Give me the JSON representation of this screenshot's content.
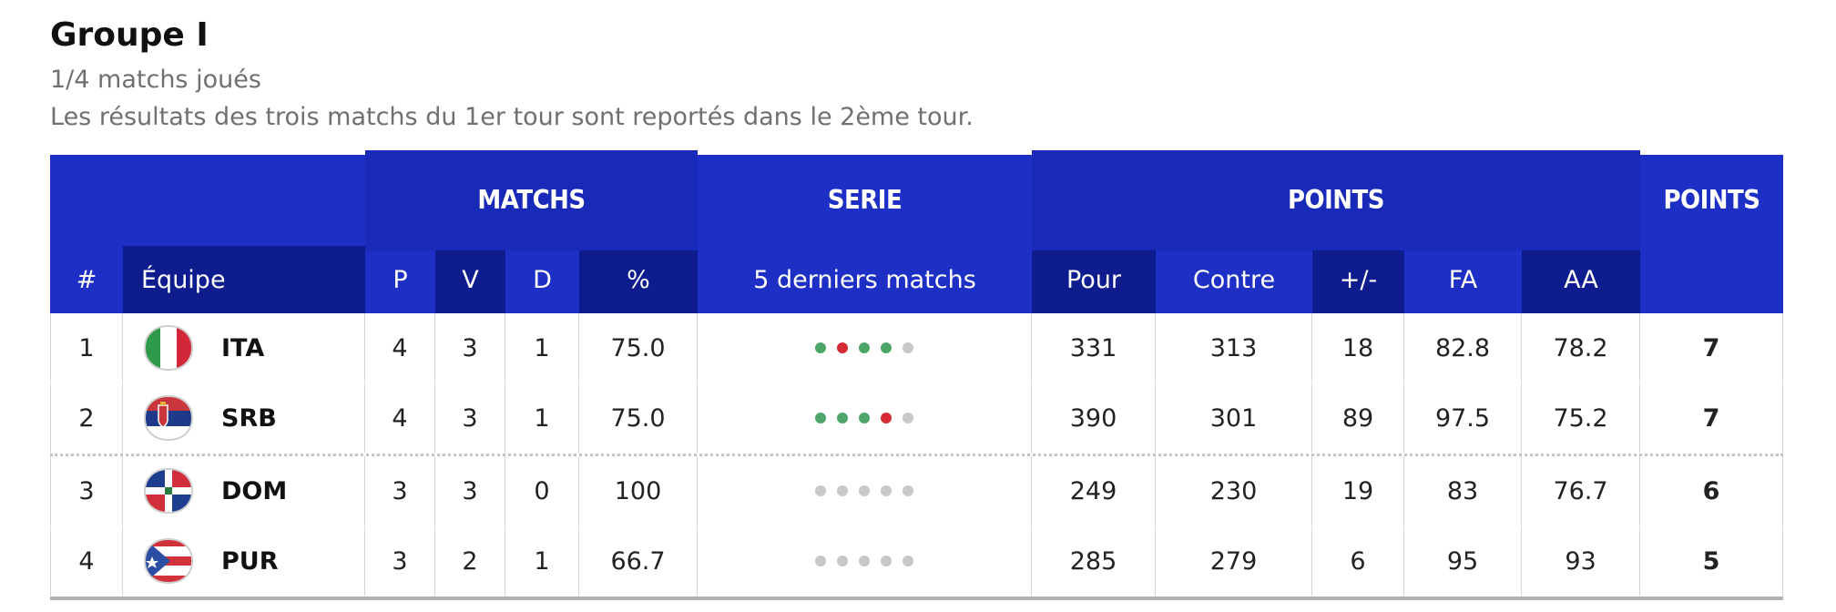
{
  "group": {
    "title": "Groupe I",
    "subtitle": "1/4 matchs joués",
    "note": "Les résultats des trois matchs du 1er tour sont reportés dans le 2ème tour."
  },
  "header_top": {
    "matchs": "MATCHS",
    "serie": "SERIE",
    "points": "POINTS",
    "points2": "POINTS"
  },
  "header_bottom": {
    "rank": "#",
    "team": "Équipe",
    "p": "P",
    "v": "V",
    "d": "D",
    "pct": "%",
    "last5": "5 derniers matchs",
    "pour": "Pour",
    "contre": "Contre",
    "diff": "+/-",
    "fa": "FA",
    "aa": "AA"
  },
  "colors": {
    "header_blue": "#1e2fc5",
    "header_dark": "#0e1c8e",
    "win": "#4fa66a",
    "loss": "#d62a34",
    "none": "#c8c8c8"
  },
  "rows": [
    {
      "rank": "1",
      "code": "ITA",
      "flag_icon": "italy-flag-icon",
      "p": "4",
      "v": "3",
      "d": "1",
      "pct": "75.0",
      "form": [
        "W",
        "L",
        "W",
        "W",
        "N"
      ],
      "pour": "331",
      "contre": "313",
      "diff": "18",
      "fa": "82.8",
      "aa": "78.2",
      "pts": "7"
    },
    {
      "rank": "2",
      "code": "SRB",
      "flag_icon": "serbia-flag-icon",
      "p": "4",
      "v": "3",
      "d": "1",
      "pct": "75.0",
      "form": [
        "W",
        "W",
        "W",
        "L",
        "N"
      ],
      "pour": "390",
      "contre": "301",
      "diff": "89",
      "fa": "97.5",
      "aa": "75.2",
      "pts": "7"
    },
    {
      "rank": "3",
      "code": "DOM",
      "flag_icon": "dominican-republic-flag-icon",
      "p": "3",
      "v": "3",
      "d": "0",
      "pct": "100",
      "form": [
        "N",
        "N",
        "N",
        "N",
        "N"
      ],
      "pour": "249",
      "contre": "230",
      "diff": "19",
      "fa": "83",
      "aa": "76.7",
      "pts": "6"
    },
    {
      "rank": "4",
      "code": "PUR",
      "flag_icon": "puerto-rico-flag-icon",
      "p": "3",
      "v": "2",
      "d": "1",
      "pct": "66.7",
      "form": [
        "N",
        "N",
        "N",
        "N",
        "N"
      ],
      "pour": "285",
      "contre": "279",
      "diff": "6",
      "fa": "95",
      "aa": "93",
      "pts": "5"
    }
  ]
}
